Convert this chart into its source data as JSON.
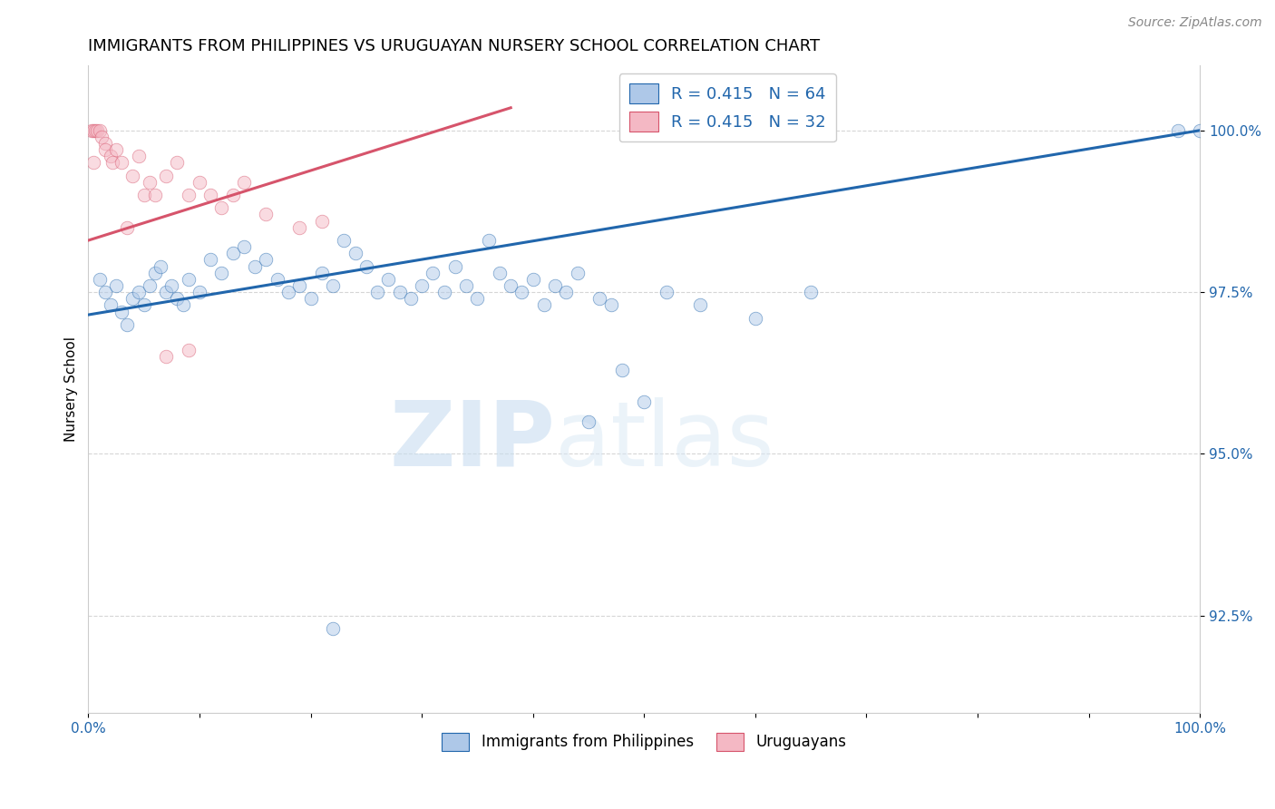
{
  "title": "IMMIGRANTS FROM PHILIPPINES VS URUGUAYAN NURSERY SCHOOL CORRELATION CHART",
  "source": "Source: ZipAtlas.com",
  "ylabel": "Nursery School",
  "yticks": [
    92.5,
    95.0,
    97.5,
    100.0
  ],
  "ytick_labels": [
    "92.5%",
    "95.0%",
    "97.5%",
    "100.0%"
  ],
  "xlim": [
    0.0,
    100.0
  ],
  "ylim": [
    91.0,
    101.0
  ],
  "legend_blue_label": "R = 0.415   N = 64",
  "legend_pink_label": "R = 0.415   N = 32",
  "legend_bottom_blue": "Immigrants from Philippines",
  "legend_bottom_pink": "Uruguayans",
  "blue_color": "#aec8e8",
  "pink_color": "#f4b8c4",
  "blue_line_color": "#2166ac",
  "pink_line_color": "#d6546b",
  "blue_dots": [
    [
      1.0,
      97.7
    ],
    [
      1.5,
      97.5
    ],
    [
      2.0,
      97.3
    ],
    [
      2.5,
      97.6
    ],
    [
      3.0,
      97.2
    ],
    [
      3.5,
      97.0
    ],
    [
      4.0,
      97.4
    ],
    [
      4.5,
      97.5
    ],
    [
      5.0,
      97.3
    ],
    [
      5.5,
      97.6
    ],
    [
      6.0,
      97.8
    ],
    [
      6.5,
      97.9
    ],
    [
      7.0,
      97.5
    ],
    [
      7.5,
      97.6
    ],
    [
      8.0,
      97.4
    ],
    [
      8.5,
      97.3
    ],
    [
      9.0,
      97.7
    ],
    [
      10.0,
      97.5
    ],
    [
      11.0,
      98.0
    ],
    [
      12.0,
      97.8
    ],
    [
      13.0,
      98.1
    ],
    [
      14.0,
      98.2
    ],
    [
      15.0,
      97.9
    ],
    [
      16.0,
      98.0
    ],
    [
      17.0,
      97.7
    ],
    [
      18.0,
      97.5
    ],
    [
      19.0,
      97.6
    ],
    [
      20.0,
      97.4
    ],
    [
      21.0,
      97.8
    ],
    [
      22.0,
      97.6
    ],
    [
      23.0,
      98.3
    ],
    [
      24.0,
      98.1
    ],
    [
      25.0,
      97.9
    ],
    [
      26.0,
      97.5
    ],
    [
      27.0,
      97.7
    ],
    [
      28.0,
      97.5
    ],
    [
      29.0,
      97.4
    ],
    [
      30.0,
      97.6
    ],
    [
      31.0,
      97.8
    ],
    [
      32.0,
      97.5
    ],
    [
      33.0,
      97.9
    ],
    [
      34.0,
      97.6
    ],
    [
      35.0,
      97.4
    ],
    [
      36.0,
      98.3
    ],
    [
      37.0,
      97.8
    ],
    [
      38.0,
      97.6
    ],
    [
      39.0,
      97.5
    ],
    [
      40.0,
      97.7
    ],
    [
      41.0,
      97.3
    ],
    [
      42.0,
      97.6
    ],
    [
      43.0,
      97.5
    ],
    [
      44.0,
      97.8
    ],
    [
      45.0,
      95.5
    ],
    [
      46.0,
      97.4
    ],
    [
      47.0,
      97.3
    ],
    [
      48.0,
      96.3
    ],
    [
      50.0,
      95.8
    ],
    [
      52.0,
      97.5
    ],
    [
      55.0,
      97.3
    ],
    [
      60.0,
      97.1
    ],
    [
      22.0,
      92.3
    ],
    [
      98.0,
      100.0
    ],
    [
      100.0,
      100.0
    ],
    [
      65.0,
      97.5
    ]
  ],
  "pink_dots": [
    [
      0.3,
      100.0
    ],
    [
      0.5,
      100.0
    ],
    [
      0.6,
      100.0
    ],
    [
      0.8,
      100.0
    ],
    [
      1.0,
      100.0
    ],
    [
      1.2,
      99.9
    ],
    [
      1.5,
      99.8
    ],
    [
      1.5,
      99.7
    ],
    [
      2.0,
      99.6
    ],
    [
      2.2,
      99.5
    ],
    [
      2.5,
      99.7
    ],
    [
      3.0,
      99.5
    ],
    [
      3.5,
      98.5
    ],
    [
      4.0,
      99.3
    ],
    [
      4.5,
      99.6
    ],
    [
      5.0,
      99.0
    ],
    [
      5.5,
      99.2
    ],
    [
      6.0,
      99.0
    ],
    [
      7.0,
      99.3
    ],
    [
      8.0,
      99.5
    ],
    [
      9.0,
      99.0
    ],
    [
      10.0,
      99.2
    ],
    [
      11.0,
      99.0
    ],
    [
      12.0,
      98.8
    ],
    [
      13.0,
      99.0
    ],
    [
      14.0,
      99.2
    ],
    [
      16.0,
      98.7
    ],
    [
      19.0,
      98.5
    ],
    [
      21.0,
      98.6
    ],
    [
      7.0,
      96.5
    ],
    [
      9.0,
      96.6
    ],
    [
      0.5,
      99.5
    ]
  ],
  "blue_line_x": [
    0.0,
    100.0
  ],
  "blue_line_y": [
    97.15,
    100.0
  ],
  "pink_line_x": [
    0.0,
    38.0
  ],
  "pink_line_y": [
    98.3,
    100.35
  ],
  "watermark_zip": "ZIP",
  "watermark_atlas": "atlas",
  "title_fontsize": 13,
  "axis_label_fontsize": 11,
  "tick_fontsize": 11,
  "legend_fontsize": 13,
  "dot_size": 110,
  "dot_alpha": 0.5,
  "grid_color": "#cccccc",
  "grid_style": "--",
  "grid_alpha": 0.8
}
